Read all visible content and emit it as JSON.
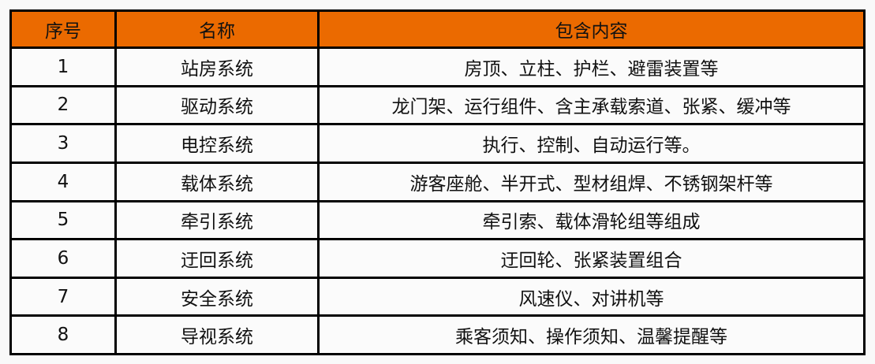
{
  "header": {
    "colors": {
      "header_bg": "#eb6a00"
    },
    "columns": [
      "序号",
      "名称",
      "包含内容"
    ]
  },
  "rows": [
    {
      "no": "1",
      "name": "站房系统",
      "content": "房顶、立柱、护栏、避雷装置等"
    },
    {
      "no": "2",
      "name": "驱动系统",
      "content": "龙门架、运行组件、含主承载索道、张紧、缓冲等"
    },
    {
      "no": "3",
      "name": "电控系统",
      "content": "执行、控制、自动运行等。"
    },
    {
      "no": "4",
      "name": "载体系统",
      "content": "游客座舱、半开式、型材组焊、不锈钢架杆等"
    },
    {
      "no": "5",
      "name": "牵引系统",
      "content": "牵引索、载体滑轮组等组成"
    },
    {
      "no": "6",
      "name": "迂回系统",
      "content": "迂回轮、张紧装置组合"
    },
    {
      "no": "7",
      "name": "安全系统",
      "content": "风速仪、对讲机等"
    },
    {
      "no": "8",
      "name": "导视系统",
      "content": "乘客须知、操作须知、温馨提醒等"
    }
  ]
}
